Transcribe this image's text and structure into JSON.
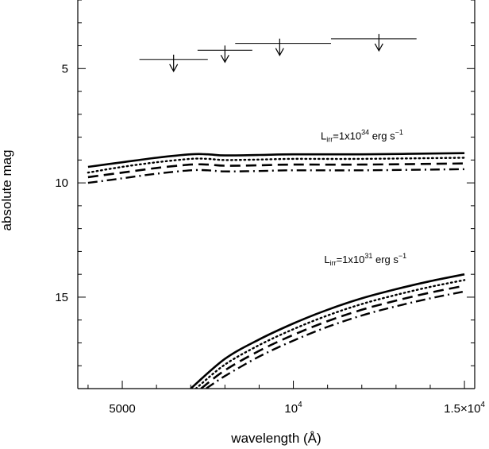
{
  "chart_data": {
    "type": "line",
    "xlabel": "wavelength (Å)",
    "ylabel": "absolute mag",
    "xlim": [
      3700,
      15300
    ],
    "ylim": [
      19.0,
      2.0
    ],
    "y_inverted": true,
    "grid": false,
    "xticks": [
      {
        "value": 5000,
        "label": "5000"
      },
      {
        "value": 10000,
        "label": "10",
        "sup": "4"
      },
      {
        "value": 15000,
        "label": "1.5×10",
        "sup": "4"
      }
    ],
    "yticks": [
      {
        "value": 5,
        "label": "5"
      },
      {
        "value": 10,
        "label": "10"
      },
      {
        "value": 15,
        "label": "15"
      }
    ],
    "minor_y_step": 1,
    "minor_x_step": 1000,
    "annotations": [
      {
        "text": "L",
        "sub": "irr",
        "rest": "=1x10",
        "sup": "34",
        "tail": " erg s",
        "tail_sup": "−1",
        "x": 10800,
        "y": 8.1
      },
      {
        "text": "L",
        "sub": "irr",
        "rest": "=1x10",
        "sup": "31",
        "tail": " erg s",
        "tail_sup": "−1",
        "x": 10900,
        "y": 13.5
      }
    ],
    "upper_limits": [
      {
        "x": 6500,
        "x_err": [
          5500,
          7500
        ],
        "y": 4.6
      },
      {
        "x": 8000,
        "x_err": [
          7200,
          8800
        ],
        "y": 4.2
      },
      {
        "x": 9600,
        "x_err": [
          8300,
          11100
        ],
        "y": 3.9
      },
      {
        "x": 12500,
        "x_err": [
          11100,
          13600
        ],
        "y": 3.7
      }
    ],
    "series": [
      {
        "style": "solid",
        "group": "Lirr=1e34",
        "x": [
          4000,
          5000,
          6000,
          7000,
          7500,
          8000,
          9000,
          10000,
          12000,
          15000
        ],
        "y": [
          9.3,
          9.1,
          8.9,
          8.75,
          8.75,
          8.8,
          8.78,
          8.75,
          8.75,
          8.7
        ]
      },
      {
        "style": "dotted",
        "group": "Lirr=1e34",
        "x": [
          4000,
          5000,
          6000,
          7000,
          7500,
          8000,
          9000,
          10000,
          12000,
          15000
        ],
        "y": [
          9.55,
          9.3,
          9.1,
          8.95,
          8.95,
          9.0,
          8.98,
          8.95,
          8.95,
          8.9
        ]
      },
      {
        "style": "dashed",
        "group": "Lirr=1e34",
        "x": [
          4000,
          5000,
          6000,
          7000,
          7500,
          8000,
          9000,
          10000,
          12000,
          15000
        ],
        "y": [
          9.75,
          9.55,
          9.35,
          9.2,
          9.2,
          9.25,
          9.23,
          9.2,
          9.2,
          9.15
        ]
      },
      {
        "style": "dashdot",
        "group": "Lirr=1e34",
        "x": [
          4000,
          5000,
          6000,
          7000,
          7500,
          8000,
          9000,
          10000,
          12000,
          15000
        ],
        "y": [
          10.0,
          9.8,
          9.6,
          9.45,
          9.45,
          9.5,
          9.48,
          9.45,
          9.45,
          9.4
        ]
      },
      {
        "style": "solid",
        "group": "Lirr=1e31",
        "x": [
          7000,
          8000,
          9000,
          10000,
          11000,
          12000,
          13000,
          14000,
          15000
        ],
        "y": [
          19.0,
          17.7,
          16.85,
          16.15,
          15.55,
          15.05,
          14.65,
          14.3,
          14.0
        ]
      },
      {
        "style": "dotted",
        "group": "Lirr=1e31",
        "x": [
          7150,
          8000,
          9000,
          10000,
          11000,
          12000,
          13000,
          14000,
          15000
        ],
        "y": [
          19.0,
          17.95,
          17.1,
          16.4,
          15.8,
          15.3,
          14.9,
          14.55,
          14.25
        ]
      },
      {
        "style": "dashed",
        "group": "Lirr=1e31",
        "x": [
          7300,
          8000,
          9000,
          10000,
          11000,
          12000,
          13000,
          14000,
          15000
        ],
        "y": [
          19.0,
          18.2,
          17.35,
          16.65,
          16.05,
          15.55,
          15.15,
          14.8,
          14.5
        ]
      },
      {
        "style": "dashdot",
        "group": "Lirr=1e31",
        "x": [
          7450,
          8000,
          9000,
          10000,
          11000,
          12000,
          13000,
          14000,
          15000
        ],
        "y": [
          19.0,
          18.45,
          17.6,
          16.9,
          16.3,
          15.8,
          15.4,
          15.05,
          14.75
        ]
      }
    ]
  }
}
